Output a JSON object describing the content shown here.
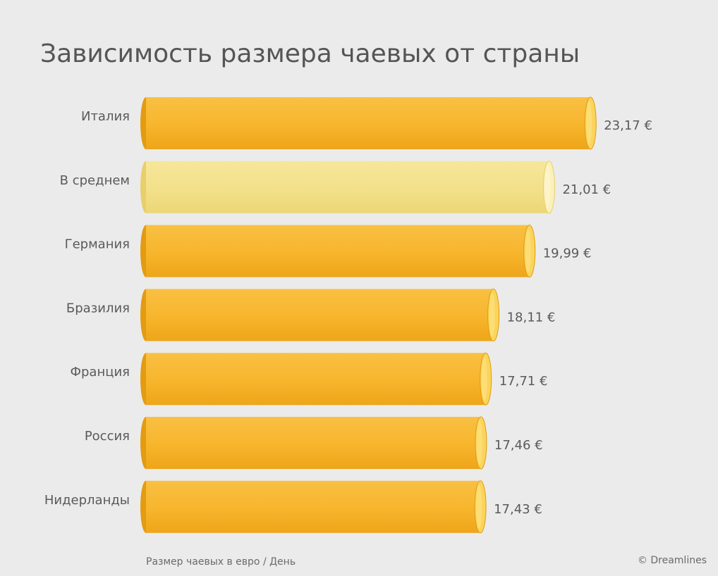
{
  "chart_data": {
    "type": "bar",
    "orientation": "horizontal",
    "title": "Зависимость размера чаевых от страны",
    "categories": [
      "Италия",
      "В среднем",
      "Германия",
      "Бразилия",
      "Франция",
      "Россия",
      "Нидерланды"
    ],
    "values": [
      23.17,
      21.01,
      19.99,
      18.11,
      17.71,
      17.46,
      17.43
    ],
    "value_labels": [
      "23,17 €",
      "21,01 €",
      "19,99 €",
      "18,11 €",
      "17,71 €",
      "17,46 €",
      "17,43 €"
    ],
    "highlight_category": "В среднем",
    "xlabel": "Размер чаевых в евро / День",
    "ylabel": "",
    "source": "© Dreamlines",
    "grid": false
  },
  "colors": {
    "background": "#ebebeb",
    "bar": "#f7b52c",
    "bar_dark": "#e39b10",
    "bar_cap": "#fbd45a",
    "bar_cap_light": "#fde48a",
    "highlight_bar": "#f3e08a",
    "highlight_bar_dark": "#e8cf6a",
    "highlight_cap": "#fbf0b8"
  }
}
